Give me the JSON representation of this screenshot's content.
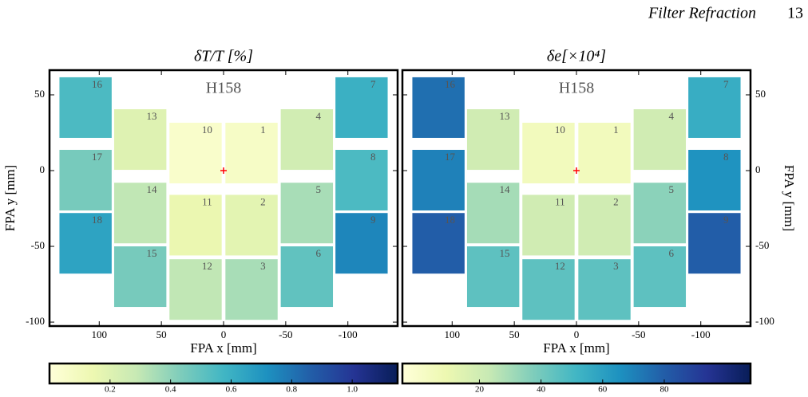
{
  "header": {
    "running_title": "Filter Refraction",
    "page_number": "13"
  },
  "chart_data": [
    {
      "type": "detector_map",
      "title": "δT/T [%]",
      "label": "H158",
      "x_label": "FPA x [mm]",
      "y_label": "FPA y [mm]",
      "y_axis_side": "left",
      "xlim": [
        140,
        -140
      ],
      "ylim": [
        -102.6,
        66.3
      ],
      "xticks": [
        100,
        50,
        0,
        -50,
        -100
      ],
      "yticks": [
        50,
        0,
        -50,
        -100
      ],
      "detector_size": [
        42,
        40
      ],
      "detectors": [
        {
          "label": "1",
          "x": -22.5,
          "y": 11.6,
          "value": 0.07
        },
        {
          "label": "2",
          "x": -22.5,
          "y": -36,
          "value": 0.18
        },
        {
          "label": "3",
          "x": -22.5,
          "y": -78.5,
          "value": 0.35
        },
        {
          "label": "4",
          "x": -67,
          "y": 20.5,
          "value": 0.25
        },
        {
          "label": "5",
          "x": -67,
          "y": -28,
          "value": 0.35
        },
        {
          "label": "6",
          "x": -67,
          "y": -70,
          "value": 0.5
        },
        {
          "label": "7",
          "x": -111,
          "y": 41.6,
          "value": 0.6
        },
        {
          "label": "8",
          "x": -111,
          "y": -6.3,
          "value": 0.55
        },
        {
          "label": "9",
          "x": -111,
          "y": -48,
          "value": 0.75
        },
        {
          "label": "10",
          "x": 22.5,
          "y": 11.6,
          "value": 0.05
        },
        {
          "label": "11",
          "x": 22.5,
          "y": -36,
          "value": 0.15
        },
        {
          "label": "12",
          "x": 22.5,
          "y": -78.5,
          "value": 0.3
        },
        {
          "label": "13",
          "x": 67,
          "y": 20.5,
          "value": 0.2
        },
        {
          "label": "14",
          "x": 67,
          "y": -28,
          "value": 0.3
        },
        {
          "label": "15",
          "x": 67,
          "y": -70,
          "value": 0.45
        },
        {
          "label": "16",
          "x": 111,
          "y": 41.6,
          "value": 0.55
        },
        {
          "label": "17",
          "x": 111,
          "y": -6.3,
          "value": 0.45
        },
        {
          "label": "18",
          "x": 111,
          "y": -48,
          "value": 0.65
        }
      ],
      "colorbar": {
        "lim": [
          0,
          1.15
        ],
        "ticks": [
          0.2,
          0.4,
          0.6,
          0.8,
          {
            "value": 1.0,
            "label": "1.0"
          }
        ]
      }
    },
    {
      "type": "detector_map",
      "title": "δe[×10⁴]",
      "label": "H158",
      "x_label": "FPA x [mm]",
      "y_label": "FPA y [mm]",
      "y_axis_side": "right",
      "xlim": [
        140,
        -140
      ],
      "ylim": [
        -102.6,
        66.3
      ],
      "xticks": [
        100,
        50,
        0,
        -50,
        -100
      ],
      "yticks": [
        50,
        0,
        -50,
        -100
      ],
      "detector_size": [
        42,
        40
      ],
      "detectors": [
        {
          "label": "1",
          "x": -22.5,
          "y": 11.6,
          "value": 5
        },
        {
          "label": "2",
          "x": -22.5,
          "y": -36,
          "value": 20
        },
        {
          "label": "3",
          "x": -22.5,
          "y": -78.5,
          "value": 45
        },
        {
          "label": "4",
          "x": -67,
          "y": 20.5,
          "value": 20
        },
        {
          "label": "5",
          "x": -67,
          "y": -28,
          "value": 35
        },
        {
          "label": "6",
          "x": -67,
          "y": -70,
          "value": 45
        },
        {
          "label": "7",
          "x": -111,
          "y": 41.6,
          "value": 55
        },
        {
          "label": "8",
          "x": -111,
          "y": -6.3,
          "value": 65
        },
        {
          "label": "9",
          "x": -111,
          "y": -48,
          "value": 80
        },
        {
          "label": "10",
          "x": 22.5,
          "y": 11.6,
          "value": 5
        },
        {
          "label": "11",
          "x": 22.5,
          "y": -36,
          "value": 20
        },
        {
          "label": "12",
          "x": 22.5,
          "y": -78.5,
          "value": 45
        },
        {
          "label": "13",
          "x": 67,
          "y": 20.5,
          "value": 20
        },
        {
          "label": "14",
          "x": 67,
          "y": -28,
          "value": 30
        },
        {
          "label": "15",
          "x": 67,
          "y": -70,
          "value": 45
        },
        {
          "label": "16",
          "x": 111,
          "y": 41.6,
          "value": 75
        },
        {
          "label": "17",
          "x": 111,
          "y": -6.3,
          "value": 70
        },
        {
          "label": "18",
          "x": 111,
          "y": -48,
          "value": 80
        }
      ],
      "colorbar": {
        "lim": [
          -5,
          108
        ],
        "ticks": [
          20,
          40,
          60,
          80
        ]
      }
    }
  ]
}
